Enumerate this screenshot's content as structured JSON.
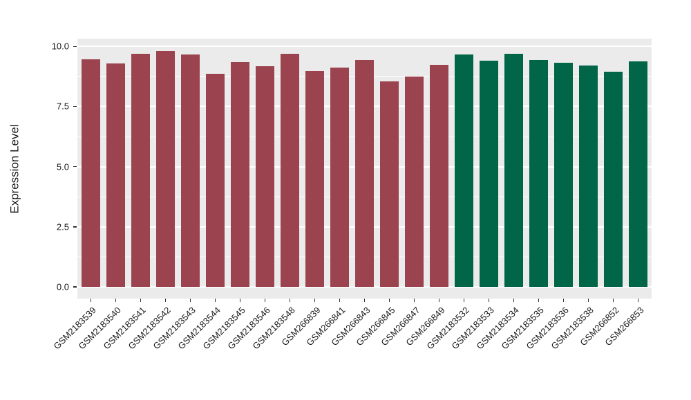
{
  "chart_data": {
    "type": "bar",
    "title": "",
    "xlabel": "",
    "ylabel": "Expression Level",
    "ylim": [
      0,
      10.32
    ],
    "grid": true,
    "legend": "none",
    "ytick_values": [
      0,
      2.5,
      5,
      7.5,
      10
    ],
    "ytick_labels": [
      "0.0",
      "2.5",
      "5.0",
      "7.5",
      "10.0"
    ],
    "yminor_values": [
      1.25,
      3.75,
      6.25,
      8.75
    ],
    "categories": [
      "GSM2183539",
      "GSM2183540",
      "GSM2183541",
      "GSM2183542",
      "GSM2183543",
      "GSM2183544",
      "GSM2183545",
      "GSM2183546",
      "GSM2183548",
      "GSM266839",
      "GSM266841",
      "GSM266843",
      "GSM266845",
      "GSM266847",
      "GSM266849",
      "GSM2183532",
      "GSM2183533",
      "GSM2183534",
      "GSM2183535",
      "GSM2183536",
      "GSM2183538",
      "GSM266852",
      "GSM266853"
    ],
    "values": [
      9.47,
      9.3,
      9.68,
      9.81,
      9.66,
      8.87,
      9.35,
      9.19,
      9.68,
      8.98,
      9.13,
      9.44,
      8.54,
      8.76,
      9.23,
      9.66,
      9.4,
      9.68,
      9.43,
      9.32,
      9.22,
      8.94,
      9.37
    ],
    "bar_colors": [
      "#9B4450",
      "#9B4450",
      "#9B4450",
      "#9B4450",
      "#9B4450",
      "#9B4450",
      "#9B4450",
      "#9B4450",
      "#9B4450",
      "#9B4450",
      "#9B4450",
      "#9B4450",
      "#9B4450",
      "#9B4450",
      "#9B4450",
      "#006647",
      "#006647",
      "#006647",
      "#006647",
      "#006647",
      "#006647",
      "#006647",
      "#006647"
    ],
    "group_palette": {
      "maroon": "#9B4450",
      "green": "#006647"
    },
    "panel_background": "#EBEBEB",
    "grid_color": "#FFFFFF",
    "tick_color": "#333333",
    "text_color": "#1A1A1A"
  }
}
